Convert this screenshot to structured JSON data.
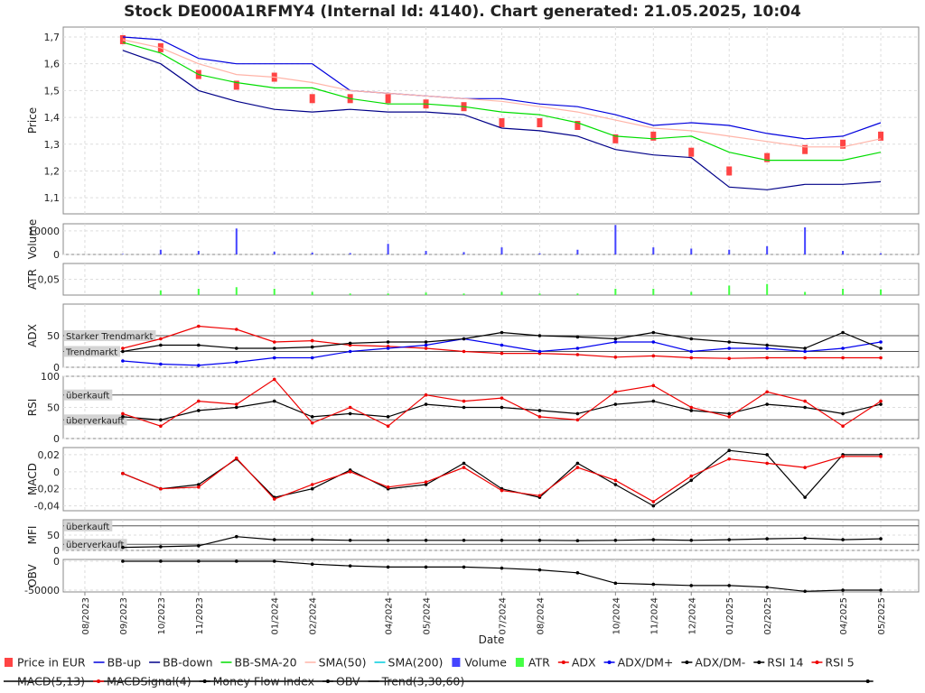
{
  "chart_data": {
    "type": "stock",
    "title": "Stock DE000A1RFMY4 (Internal Id: 4140). Chart generated: 21.05.2025, 10:04",
    "x_label": "Date",
    "x": [
      "2023-09",
      "2023-10",
      "2023-11",
      "2023-12",
      "2024-01",
      "2024-02",
      "2024-03",
      "2024-04",
      "2024-05",
      "2024-06",
      "2024-07",
      "2024-08",
      "2024-09",
      "2024-10",
      "2024-11",
      "2024-12",
      "2025-01",
      "2025-02",
      "2025-03",
      "2025-04",
      "2025-05"
    ],
    "xlim": [
      "2023-07",
      "2025-06"
    ],
    "xticks": [
      {
        "value": "2023-08",
        "label": "08/2023"
      },
      {
        "value": "2023-09",
        "label": "09/2023"
      },
      {
        "value": "2023-10",
        "label": "10/2023"
      },
      {
        "value": "2023-11",
        "label": "11/2023"
      },
      {
        "value": "2024-01",
        "label": "01/2024"
      },
      {
        "value": "2024-02",
        "label": "02/2024"
      },
      {
        "value": "2024-04",
        "label": "04/2024"
      },
      {
        "value": "2024-05",
        "label": "05/2024"
      },
      {
        "value": "2024-07",
        "label": "07/2024"
      },
      {
        "value": "2024-08",
        "label": "08/2024"
      },
      {
        "value": "2024-10",
        "label": "10/2024"
      },
      {
        "value": "2024-11",
        "label": "11/2024"
      },
      {
        "value": "2024-12",
        "label": "12/2024"
      },
      {
        "value": "2025-01",
        "label": "01/2025"
      },
      {
        "value": "2025-02",
        "label": "02/2025"
      },
      {
        "value": "2025-04",
        "label": "04/2025"
      },
      {
        "value": "2025-05",
        "label": "05/2025"
      }
    ],
    "grid": true,
    "panels": [
      {
        "y_label": "Price",
        "ylim": [
          1.04,
          1.737
        ],
        "yticks": [
          {
            "value": 1.1,
            "label": "1,1"
          },
          {
            "value": 1.2,
            "label": "1,2"
          },
          {
            "value": 1.3,
            "label": "1,3"
          },
          {
            "value": 1.4,
            "label": "1,4"
          },
          {
            "value": 1.5,
            "label": "1,5"
          },
          {
            "value": 1.6,
            "label": "1,6"
          },
          {
            "value": 1.7,
            "label": "1,7"
          }
        ],
        "series": [
          {
            "name": "Price in EUR",
            "color": "#ff4444",
            "style": "candle",
            "values": [
              1.69,
              1.66,
              1.56,
              1.52,
              1.55,
              1.47,
              1.47,
              1.47,
              1.45,
              1.44,
              1.38,
              1.38,
              1.37,
              1.32,
              1.33,
              1.27,
              1.2,
              1.25,
              1.28,
              1.3,
              1.33
            ]
          },
          {
            "name": "BB-up",
            "color": "#0000dd",
            "style": "line",
            "values": [
              1.7,
              1.69,
              1.62,
              1.6,
              1.6,
              1.6,
              1.5,
              1.49,
              1.48,
              1.47,
              1.47,
              1.45,
              1.44,
              1.41,
              1.37,
              1.38,
              1.37,
              1.34,
              1.32,
              1.33,
              1.38
            ]
          },
          {
            "name": "BB-down",
            "color": "#000088",
            "style": "line",
            "values": [
              1.65,
              1.6,
              1.5,
              1.46,
              1.43,
              1.42,
              1.43,
              1.42,
              1.42,
              1.41,
              1.36,
              1.35,
              1.33,
              1.28,
              1.26,
              1.25,
              1.14,
              1.13,
              1.15,
              1.15,
              1.16
            ]
          },
          {
            "name": "BB-SMA-20",
            "color": "#00dd00",
            "style": "line",
            "values": [
              1.68,
              1.64,
              1.56,
              1.53,
              1.51,
              1.51,
              1.47,
              1.45,
              1.45,
              1.44,
              1.42,
              1.41,
              1.38,
              1.33,
              1.32,
              1.33,
              1.27,
              1.24,
              1.24,
              1.24,
              1.27
            ]
          },
          {
            "name": "SMA(50)",
            "color": "#ffb4a8",
            "style": "line",
            "values": [
              1.69,
              1.66,
              1.6,
              1.56,
              1.55,
              1.53,
              1.5,
              1.49,
              1.48,
              1.47,
              1.46,
              1.44,
              1.42,
              1.39,
              1.36,
              1.35,
              1.33,
              1.31,
              1.29,
              1.29,
              1.32
            ]
          },
          {
            "name": "SMA(200)",
            "color": "#00ccdd",
            "style": "line",
            "values": [
              null,
              null,
              null,
              null,
              null,
              null,
              null,
              null,
              null,
              null,
              null,
              null,
              null,
              null,
              null,
              null,
              null,
              null,
              null,
              null,
              null
            ]
          }
        ]
      },
      {
        "y_label": "Volume",
        "ylim": [
          0,
          13000
        ],
        "yticks": [
          0,
          10000
        ],
        "series": [
          {
            "name": "Volume",
            "color": "#4444ff",
            "style": "bar",
            "values": [
              200,
              2000,
              1500,
              11000,
              1200,
              800,
              600,
              4500,
              1500,
              1000,
              3000,
              500,
              2000,
              12500,
              3000,
              2500,
              2000,
              3500,
              11500,
              1500,
              500
            ]
          }
        ]
      },
      {
        "y_label": "ATR",
        "ylim": [
          0,
          0.1
        ],
        "yticks": [
          {
            "value": 0.05,
            "label": "0,05"
          }
        ],
        "series": [
          {
            "name": "ATR",
            "color": "#44ff44",
            "style": "bar",
            "values": [
              0,
              0.015,
              0.02,
              0.025,
              0.02,
              0.01,
              0.005,
              0.005,
              0.008,
              0.005,
              0.01,
              0.005,
              0.005,
              0.02,
              0.02,
              0.01,
              0.03,
              0.035,
              0.01,
              0.02,
              0.018
            ]
          }
        ]
      },
      {
        "y_label": "ADX",
        "ylim": [
          0,
          100
        ],
        "yticks": [
          0,
          50
        ],
        "reference_lines": [
          {
            "value": 50,
            "label": "Starker Trendmarkt"
          },
          {
            "value": 25,
            "label": "Trendmarkt"
          }
        ],
        "series": [
          {
            "name": "ADX",
            "color": "#ee0000",
            "style": "line",
            "markers": true,
            "values": [
              30,
              45,
              65,
              60,
              40,
              42,
              35,
              33,
              30,
              25,
              22,
              22,
              20,
              16,
              18,
              15,
              14,
              15,
              15,
              15,
              15
            ]
          },
          {
            "name": "ADX/DM+",
            "color": "#0000ee",
            "style": "line",
            "markers": true,
            "values": [
              10,
              5,
              3,
              8,
              15,
              15,
              25,
              30,
              35,
              45,
              35,
              25,
              30,
              40,
              40,
              25,
              30,
              30,
              25,
              30,
              40
            ]
          },
          {
            "name": "ADX/DM-",
            "color": "#000000",
            "style": "line",
            "markers": true,
            "values": [
              25,
              35,
              35,
              30,
              30,
              32,
              38,
              40,
              40,
              45,
              55,
              50,
              48,
              45,
              55,
              45,
              40,
              35,
              30,
              55,
              30
            ]
          }
        ]
      },
      {
        "y_label": "RSI",
        "ylim": [
          0,
          100
        ],
        "yticks": [
          0,
          50,
          100
        ],
        "reference_lines": [
          {
            "value": 70,
            "label": "überkauft"
          },
          {
            "value": 30,
            "label": "überverkauft"
          }
        ],
        "series": [
          {
            "name": "RSI 14",
            "color": "#000000",
            "style": "line",
            "markers": true,
            "values": [
              35,
              30,
              45,
              50,
              60,
              35,
              40,
              35,
              55,
              50,
              50,
              45,
              40,
              55,
              60,
              45,
              40,
              55,
              50,
              40,
              55
            ]
          },
          {
            "name": "RSI 5",
            "color": "#ee0000",
            "style": "line",
            "markers": true,
            "values": [
              40,
              20,
              60,
              55,
              95,
              25,
              50,
              20,
              70,
              60,
              65,
              35,
              30,
              75,
              85,
              50,
              35,
              75,
              60,
              20,
              60
            ]
          }
        ]
      },
      {
        "y_label": "MACD",
        "ylim": [
          -0.0457,
          0.0284
        ],
        "yticks": [
          {
            "value": -0.04,
            "label": "-0,04"
          },
          {
            "value": -0.02,
            "label": "-0,02"
          },
          0,
          {
            "value": 0.02,
            "label": "0,02"
          }
        ],
        "series": [
          {
            "name": "MACD(5,13)",
            "color": "#000000",
            "style": "line",
            "markers": true,
            "values": [
              -0.002,
              -0.02,
              -0.015,
              0.015,
              -0.03,
              -0.02,
              0.002,
              -0.02,
              -0.015,
              0.01,
              -0.02,
              -0.03,
              0.01,
              -0.015,
              -0.04,
              -0.01,
              0.025,
              0.02,
              -0.03,
              0.02,
              0.02
            ]
          },
          {
            "name": "MACDSignal(4)",
            "color": "#ee0000",
            "style": "line",
            "markers": true,
            "values": [
              -0.002,
              -0.02,
              -0.018,
              0.016,
              -0.032,
              -0.015,
              0,
              -0.018,
              -0.012,
              0.005,
              -0.022,
              -0.028,
              0.005,
              -0.01,
              -0.035,
              -0.005,
              0.015,
              0.01,
              0.005,
              0.018,
              0.018
            ]
          }
        ]
      },
      {
        "y_label": "MFI",
        "ylim": [
          0,
          100
        ],
        "yticks": [
          0,
          50
        ],
        "reference_lines": [
          {
            "value": 80,
            "label": "überkauft"
          },
          {
            "value": 20,
            "label": "überverkauft"
          }
        ],
        "series": [
          {
            "name": "Money Flow Index",
            "color": "#000000",
            "style": "line",
            "markers": true,
            "values": [
              10,
              12,
              15,
              45,
              35,
              35,
              33,
              33,
              33,
              33,
              33,
              33,
              32,
              33,
              35,
              33,
              35,
              38,
              40,
              35,
              38
            ]
          }
        ]
      },
      {
        "y_label": "OBV",
        "ylim": [
          -53125,
          3125
        ],
        "yticks": [
          -50000,
          0
        ],
        "series": [
          {
            "name": "OBV",
            "color": "#000000",
            "style": "line",
            "markers": true,
            "values": [
              0,
              0,
              0,
              0,
              0,
              -5000,
              -8000,
              -10000,
              -10000,
              -10000,
              -12000,
              -15000,
              -20000,
              -38000,
              -40000,
              -42000,
              -42000,
              -45000,
              -52000,
              -50000,
              -50000
            ]
          },
          {
            "name": "Trend(3,30,60)",
            "color": "#000000",
            "style": "line",
            "values": [
              null,
              null,
              null,
              null,
              null,
              null,
              null,
              null,
              null,
              null,
              null,
              null,
              null,
              null,
              null,
              null,
              null,
              null,
              null,
              null,
              null
            ]
          }
        ]
      }
    ]
  }
}
